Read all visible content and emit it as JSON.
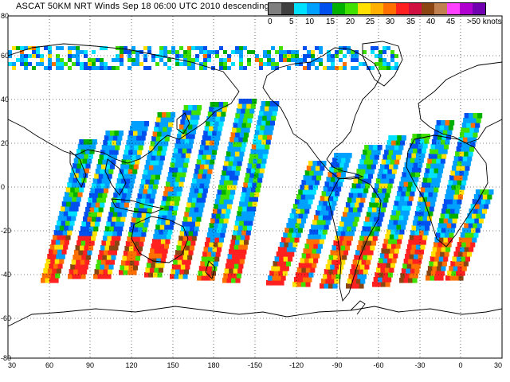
{
  "title": "ASCAT 50KM NRT Winds Sep 18 06:00 UTC 2010 descending",
  "legend": {
    "colors": [
      "#7f7f7f",
      "#3f3f3f",
      "#00e0ff",
      "#00a0ff",
      "#0050f0",
      "#00b000",
      "#40e000",
      "#ffe000",
      "#ffb000",
      "#ff7000",
      "#ff2020",
      "#d01040",
      "#8b4513",
      "#c08050",
      "#ff40ff",
      "#b000d0",
      "#7000b0"
    ],
    "labels": [
      "0",
      "5",
      "10",
      "15",
      "20",
      "25",
      "30",
      "35",
      "40",
      "45",
      ">50 knots"
    ],
    "unit": "knots"
  },
  "axes": {
    "lat_labels": [
      "80",
      "60",
      "40",
      "20",
      "0",
      "-20",
      "-40",
      "-60",
      "-80"
    ],
    "lon_labels": [
      "30",
      "60",
      "90",
      "120",
      "150",
      "180",
      "-150",
      "-120",
      "-90",
      "-60",
      "-30",
      "0",
      "30"
    ]
  },
  "swaths": {
    "palette": [
      "#0050f0",
      "#00a0ff",
      "#00e0ff",
      "#40e000",
      "#00b000",
      "#0050f0",
      "#00a0ff",
      "#ffe000",
      "#ff7000",
      "#ff2020",
      "#8b4513",
      "#7f7f7f"
    ]
  }
}
